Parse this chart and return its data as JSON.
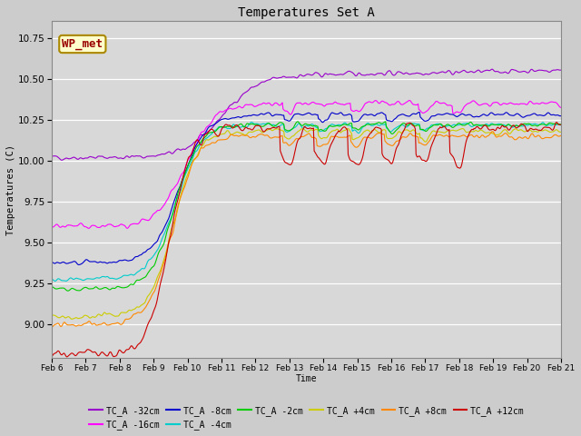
{
  "title": "Temperatures Set A",
  "xlabel": "Time",
  "ylabel": "Temperatures (C)",
  "xlim": [
    0,
    360
  ],
  "ylim": [
    8.8,
    10.85
  ],
  "series": [
    {
      "label": "TC_A -32cm",
      "color": "#9900cc"
    },
    {
      "label": "TC_A -16cm",
      "color": "#ff00ff"
    },
    {
      "label": "TC_A -8cm",
      "color": "#0000cc"
    },
    {
      "label": "TC_A -4cm",
      "color": "#00cccc"
    },
    {
      "label": "TC_A -2cm",
      "color": "#00cc00"
    },
    {
      "label": "TC_A +4cm",
      "color": "#cccc00"
    },
    {
      "label": "TC_A +8cm",
      "color": "#ff8800"
    },
    {
      "label": "TC_A +12cm",
      "color": "#cc0000"
    }
  ],
  "xtick_labels": [
    "Feb 6",
    "Feb 7",
    "Feb 8",
    "Feb 9",
    "Feb 10",
    "Feb 11",
    "Feb 12",
    "Feb 13",
    "Feb 14",
    "Feb 15",
    "Feb 16",
    "Feb 17",
    "Feb 18",
    "Feb 19",
    "Feb 20",
    "Feb 21"
  ],
  "xtick_positions": [
    0,
    24,
    48,
    72,
    96,
    120,
    144,
    168,
    192,
    216,
    240,
    264,
    288,
    312,
    336,
    360
  ],
  "wp_met_box_color": "#ffffcc",
  "wp_met_text_color": "#990000",
  "wp_met_border_color": "#aa8800"
}
